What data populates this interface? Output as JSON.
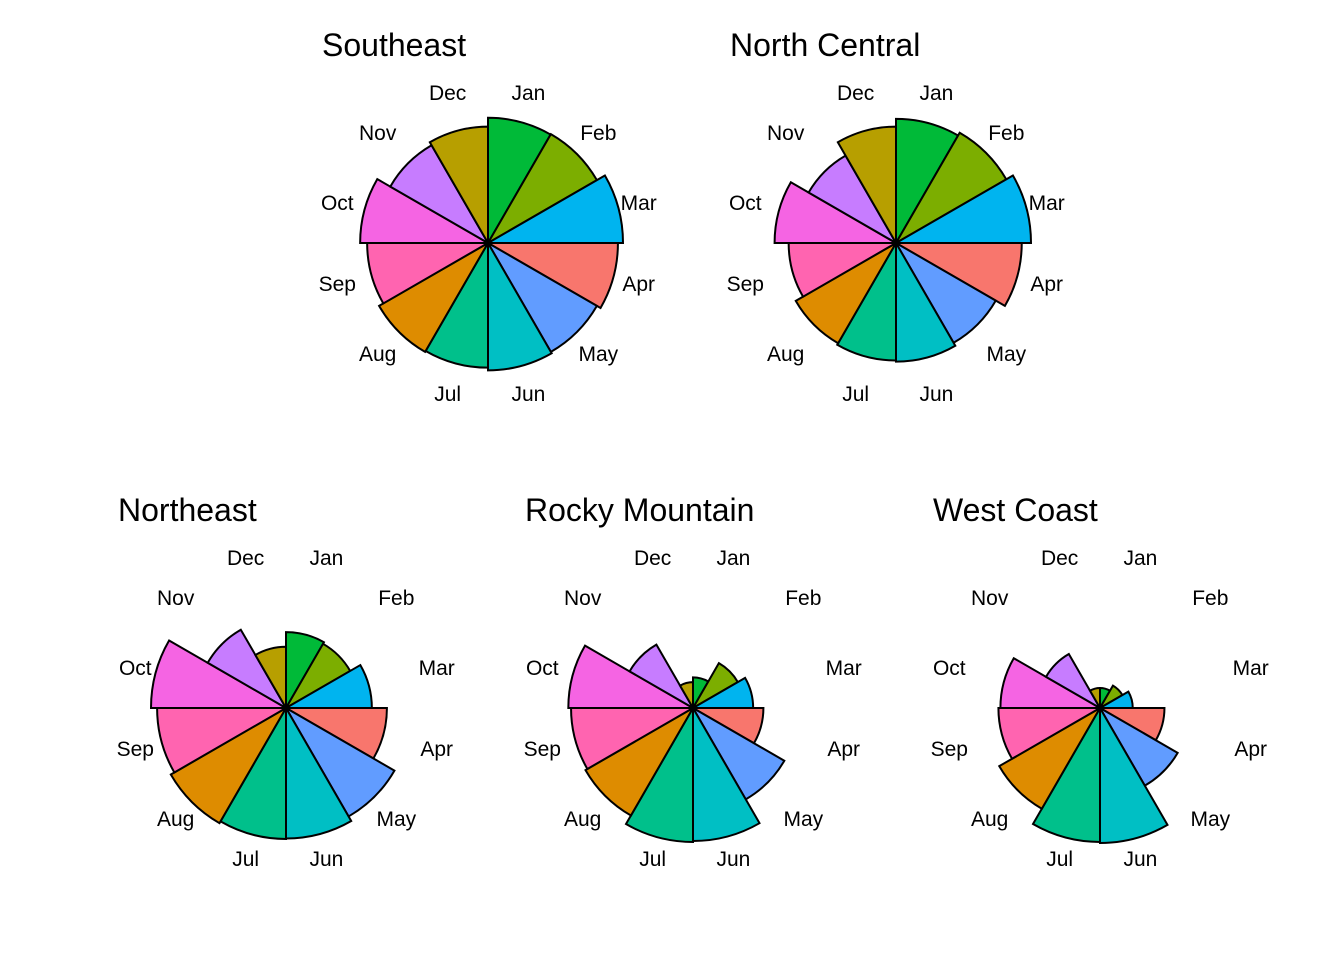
{
  "month_labels": [
    "Jan",
    "Feb",
    "Mar",
    "Apr",
    "May",
    "Jun",
    "Jul",
    "Aug",
    "Sep",
    "Oct",
    "Nov",
    "Dec"
  ],
  "month_colors": [
    "#00BA38",
    "#7CAE00",
    "#00B4EF",
    "#F8766D",
    "#619CFF",
    "#00BFC4",
    "#00C08B",
    "#DE8C00",
    "#FF64B0",
    "#F564E3",
    "#C77CFF",
    "#B79F00"
  ],
  "chart_data": [
    {
      "type": "rose",
      "title": "Southeast",
      "categories": [
        "Jan",
        "Feb",
        "Mar",
        "Apr",
        "May",
        "Jun",
        "Jul",
        "Aug",
        "Sep",
        "Oct",
        "Nov",
        "Dec"
      ],
      "values": [
        117,
        118,
        136,
        126,
        118,
        121,
        116,
        118,
        109,
        122,
        95,
        101
      ]
    },
    {
      "type": "rose",
      "title": "North Central",
      "categories": [
        "Jan",
        "Feb",
        "Mar",
        "Apr",
        "May",
        "Jun",
        "Jul",
        "Aug",
        "Sep",
        "Oct",
        "Nov",
        "Dec"
      ],
      "values": [
        115,
        121,
        136,
        118,
        99,
        105,
        103,
        100,
        86,
        110,
        76,
        101
      ]
    },
    {
      "type": "rose",
      "title": "Northeast",
      "categories": [
        "Jan",
        "Feb",
        "Mar",
        "Apr",
        "May",
        "Jun",
        "Jul",
        "Aug",
        "Sep",
        "Oct",
        "Nov",
        "Dec"
      ],
      "values": [
        43,
        41,
        55,
        76,
        117,
        127,
        128,
        132,
        124,
        136,
        61,
        28
      ]
    },
    {
      "type": "rose",
      "title": "Rocky Mountain",
      "categories": [
        "Jan",
        "Feb",
        "Mar",
        "Apr",
        "May",
        "Jun",
        "Jul",
        "Aug",
        "Sep",
        "Oct",
        "Nov",
        "Dec"
      ],
      "values": [
        7,
        20,
        27,
        37,
        83,
        132,
        134,
        115,
        111,
        116,
        40,
        5
      ]
    },
    {
      "type": "rose",
      "title": "West Coast",
      "categories": [
        "Jan",
        "Feb",
        "Mar",
        "Apr",
        "May",
        "Jun",
        "Jul",
        "Aug",
        "Sep",
        "Oct",
        "Nov",
        "Dec"
      ],
      "values": [
        3,
        5,
        8,
        31,
        60,
        136,
        134,
        101,
        77,
        74,
        29,
        3
      ]
    }
  ]
}
